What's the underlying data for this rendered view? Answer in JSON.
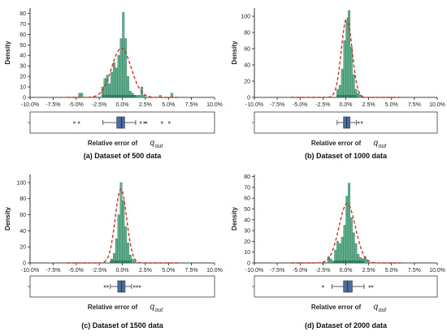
{
  "colors": {
    "bar_fill": "#5fae8e",
    "bar_stroke": "#2f7d5d",
    "kde_line": "#c8362b",
    "box_fill": "#4c6c9e",
    "rug": "#1f6b4a",
    "axis": "#000000"
  },
  "chart_data": [
    {
      "type": "bar",
      "subtitle": "(a) Dataset of 500 data",
      "ylabel": "Density",
      "xlabel_prefix": "Relative error of",
      "xlabel_var": "q",
      "xlabel_sub": "out",
      "xlim": [
        -10,
        10
      ],
      "ylim": [
        0,
        85
      ],
      "yticks": [
        "0",
        "10",
        "20",
        "30",
        "40",
        "50",
        "60",
        "70",
        "80"
      ],
      "xticks": [
        "-10.0%",
        "-7.5%",
        "-5.0%",
        "-2.5%",
        "0.0%",
        "2.5%",
        "5.0%",
        "7.5%",
        "10.0%"
      ],
      "bin_width": 0.25,
      "bins": [
        [
          -4.75,
          4
        ],
        [
          -4.5,
          4
        ],
        [
          -2.25,
          10
        ],
        [
          -2.0,
          18
        ],
        [
          -1.75,
          21
        ],
        [
          -1.5,
          13
        ],
        [
          -1.25,
          24
        ],
        [
          -1.0,
          33
        ],
        [
          -0.75,
          28
        ],
        [
          -0.5,
          40
        ],
        [
          -0.25,
          56
        ],
        [
          0.0,
          81
        ],
        [
          0.25,
          56
        ],
        [
          0.5,
          20
        ],
        [
          0.75,
          6
        ],
        [
          1.0,
          4
        ],
        [
          1.25,
          2
        ],
        [
          1.5,
          2
        ],
        [
          1.75,
          2
        ],
        [
          2.0,
          10
        ],
        [
          2.25,
          2
        ],
        [
          4.0,
          2
        ],
        [
          5.25,
          4
        ]
      ],
      "kde_peak": 47,
      "kde_center": -0.1,
      "kde_sigma": 1.05,
      "box": {
        "whisker_low": -2.1,
        "q1": -0.6,
        "median": -0.1,
        "q3": 0.25,
        "whisker_high": 1.45,
        "fliers": [
          -5.2,
          -4.7,
          2.0,
          2.4,
          2.6,
          4.3,
          5.1
        ]
      }
    },
    {
      "type": "bar",
      "subtitle": "(b) Dataset of 1000 data",
      "ylabel": "Density",
      "xlabel_prefix": "Relative error of",
      "xlabel_var": "q",
      "xlabel_sub": "out",
      "xlim": [
        -10,
        10
      ],
      "ylim": [
        0,
        110
      ],
      "yticks": [
        "0",
        "20",
        "40",
        "60",
        "80",
        "100"
      ],
      "xticks": [
        "-10.0%",
        "-7.5%",
        "-5.0%",
        "-2.5%",
        "0.0%",
        "2.5%",
        "5.0%",
        "7.5%",
        "10.0%"
      ],
      "bin_width": 0.25,
      "bins": [
        [
          -1.0,
          10
        ],
        [
          -0.75,
          15
        ],
        [
          -0.5,
          35
        ],
        [
          -0.25,
          70
        ],
        [
          0.0,
          95
        ],
        [
          0.25,
          107
        ],
        [
          0.5,
          62
        ],
        [
          0.75,
          28
        ],
        [
          1.0,
          10
        ],
        [
          1.25,
          5
        ],
        [
          1.5,
          3
        ]
      ],
      "kde_peak": 98,
      "kde_center": 0.1,
      "kde_sigma": 0.58,
      "box": {
        "whisker_low": -0.95,
        "q1": -0.25,
        "median": 0.1,
        "q3": 0.45,
        "whisker_high": 1.15,
        "fliers": [
          1.4,
          1.75
        ]
      }
    },
    {
      "type": "bar",
      "subtitle": "(c) Dataset of 1500 data",
      "ylabel": "Density",
      "xlabel_prefix": "Relative error of",
      "xlabel_var": "q",
      "xlabel_sub": "out",
      "xlim": [
        -10,
        10
      ],
      "ylim": [
        0,
        110
      ],
      "yticks": [
        "0",
        "20",
        "40",
        "60",
        "80",
        "100"
      ],
      "xticks": [
        "-10.0%",
        "-7.5%",
        "-5.0%",
        "-2.5%",
        "0.0%",
        "2.5%",
        "5.0%",
        "7.5%",
        "10.0%"
      ],
      "bin_width": 0.25,
      "bins": [
        [
          -1.25,
          5
        ],
        [
          -1.0,
          12
        ],
        [
          -0.75,
          30
        ],
        [
          -0.5,
          60
        ],
        [
          -0.25,
          100
        ],
        [
          0.0,
          78
        ],
        [
          0.25,
          45
        ],
        [
          0.5,
          25
        ],
        [
          0.75,
          10
        ],
        [
          1.0,
          5
        ],
        [
          1.25,
          3
        ]
      ],
      "kde_peak": 92,
      "kde_center": -0.15,
      "kde_sigma": 0.62,
      "box": {
        "whisker_low": -1.3,
        "q1": -0.5,
        "median": -0.1,
        "q3": 0.3,
        "whisker_high": 1.0,
        "fliers": [
          -1.9,
          -1.6,
          1.3,
          1.6,
          1.9
        ]
      }
    },
    {
      "type": "bar",
      "subtitle": "(d) Dataset of 2000 data",
      "ylabel": "Density",
      "xlabel_prefix": "Relative error of",
      "xlabel_var": "q",
      "xlabel_sub": "out",
      "xlim": [
        -10,
        10
      ],
      "ylim": [
        0,
        82
      ],
      "yticks": [
        "0",
        "10",
        "20",
        "30",
        "40",
        "50",
        "60",
        "70",
        "80"
      ],
      "xticks": [
        "-10.0%",
        "-7.5%",
        "-5.0%",
        "-2.5%",
        "0.0%",
        "2.5%",
        "5.0%",
        "7.5%",
        "10.0%"
      ],
      "bin_width": 0.25,
      "bins": [
        [
          -2.0,
          6
        ],
        [
          -1.75,
          4
        ],
        [
          -1.25,
          12
        ],
        [
          -1.0,
          20
        ],
        [
          -0.75,
          18
        ],
        [
          -0.5,
          24
        ],
        [
          -0.25,
          35
        ],
        [
          0.0,
          62
        ],
        [
          0.25,
          74
        ],
        [
          0.5,
          42
        ],
        [
          0.75,
          28
        ],
        [
          1.0,
          18
        ],
        [
          1.25,
          8
        ],
        [
          1.5,
          5
        ],
        [
          1.75,
          4
        ],
        [
          2.0,
          6
        ],
        [
          2.25,
          3
        ]
      ],
      "kde_peak": 55,
      "kde_center": 0.15,
      "kde_sigma": 0.9,
      "box": {
        "whisker_low": -1.5,
        "q1": -0.25,
        "median": 0.2,
        "q3": 0.7,
        "whisker_high": 2.0,
        "fliers": [
          -2.5,
          2.6,
          2.9
        ]
      }
    }
  ]
}
